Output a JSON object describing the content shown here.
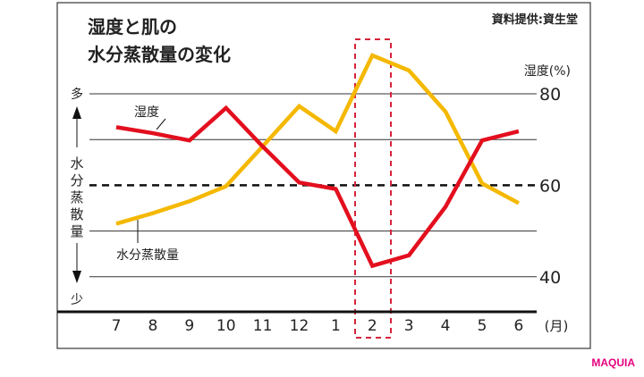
{
  "chart_data": {
    "type": "line",
    "title": "湿度と肌の\n水分蒸散量の変化",
    "title_lines": [
      "湿度と肌の",
      "水分蒸散量の変化"
    ],
    "source": "資料提供:資生堂",
    "ylabel_right": "湿度(%)",
    "ylabel_left": "水分蒸散量",
    "ylabel_left_chars": [
      "水",
      "分",
      "蒸",
      "散",
      "量"
    ],
    "ylabel_left_top": "多",
    "ylabel_left_bottom": "少",
    "xunit": "(月)",
    "categories": [
      "7",
      "8",
      "9",
      "10",
      "11",
      "12",
      "1",
      "2",
      "3",
      "4",
      "5",
      "6"
    ],
    "yticks": [
      80,
      60,
      40
    ],
    "ylim": [
      32,
      92
    ],
    "grid": true,
    "reference_line": 60,
    "highlight_category": "2",
    "series": [
      {
        "name": "湿度",
        "color": "#e30f1e",
        "values": [
          72.7,
          71.4,
          69.8,
          76.9,
          68.5,
          60.6,
          59.2,
          42.4,
          44.7,
          55.3,
          69.8,
          71.8
        ]
      },
      {
        "name": "水分蒸散量",
        "color": "#f5b800",
        "values": [
          51.6,
          53.9,
          56.5,
          59.8,
          68.5,
          77.3,
          71.8,
          88.4,
          85.1,
          76.1,
          60.4,
          56.1
        ]
      }
    ]
  },
  "brand": "MAQUIA",
  "brand_color": "#e6007e"
}
